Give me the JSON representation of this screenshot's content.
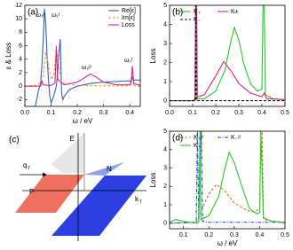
{
  "chart_data": [
    {
      "type": "line",
      "panel_label": "(a)",
      "y_label": "ε & Loss",
      "x_label": "ω / eV",
      "xlim": [
        0,
        0.44
      ],
      "ylim": [
        -3,
        12
      ],
      "xticks": [
        {
          "value": 0,
          "label": "0.0"
        },
        0.1,
        0.2,
        0.3,
        0.4
      ],
      "yticks": [
        -2,
        0,
        2,
        4,
        6,
        8,
        10,
        12
      ],
      "legend": "upper right",
      "annotations": [
        "ω₁ᵖ",
        "ω₁ᵗ",
        "ω₂ᵖ",
        "ω₂ᵗ"
      ],
      "series": [
        {
          "name": "Re[ε]",
          "color": "#2f5fd0",
          "style": "solid",
          "x": [
            0.02,
            0.04,
            0.05,
            0.06,
            0.065,
            0.07,
            0.075,
            0.08,
            0.085,
            0.09,
            0.095,
            0.1,
            0.11,
            0.12,
            0.125,
            0.13,
            0.135,
            0.14,
            0.145,
            0.15,
            0.17,
            0.2,
            0.25,
            0.3,
            0.35,
            0.4,
            0.405,
            0.41,
            0.415,
            0.44
          ],
          "values": [
            -3,
            -3,
            -1,
            0.5,
            3,
            7,
            11.5,
            9,
            4,
            1,
            -1.5,
            -2.5,
            -1.5,
            0,
            2,
            5,
            7,
            -1,
            -2,
            -1.5,
            -0.5,
            0,
            0.4,
            0.6,
            0.7,
            0.8,
            0.6,
            1.3,
            0.9,
            0.9
          ]
        },
        {
          "name": "Im[ε]",
          "color": "#f0a020",
          "style": "dashed",
          "x": [
            0,
            0.05,
            0.07,
            0.08,
            0.09,
            0.1,
            0.11,
            0.12,
            0.13,
            0.14,
            0.2,
            0.3,
            0.4,
            0.41,
            0.42,
            0.44
          ],
          "values": [
            0,
            0.2,
            1.5,
            5,
            3,
            1,
            1.5,
            5.5,
            3,
            0.5,
            0.1,
            0.05,
            0.05,
            0.3,
            0.05,
            0
          ]
        },
        {
          "name": "Loss",
          "color": "#e0208a",
          "style": "solid",
          "x": [
            0,
            0.06,
            0.065,
            0.07,
            0.1,
            0.115,
            0.12,
            0.125,
            0.15,
            0.2,
            0.23,
            0.25,
            0.27,
            0.3,
            0.35,
            0.4,
            0.405,
            0.41,
            0.415,
            0.44
          ],
          "values": [
            0,
            0,
            0.8,
            0.2,
            0.1,
            0.5,
            6,
            1,
            0.2,
            0.6,
            1.3,
            1.8,
            1.4,
            0.6,
            0.2,
            0.2,
            0.5,
            3,
            0.4,
            0.1
          ]
        }
      ]
    },
    {
      "type": "line",
      "panel_label": "(b)",
      "y_label": "Loss",
      "xlim": [
        0,
        0.5
      ],
      "ylim": [
        -0.3,
        5
      ],
      "xticks": [
        {
          "value": 0,
          "label": "0.0"
        },
        0.1,
        0.2,
        0.3,
        0.4,
        0.5
      ],
      "yticks": [
        0,
        1,
        2,
        3,
        4,
        5
      ],
      "legend": "upper center",
      "series": [
        {
          "name": "K₊",
          "color": "#22cc22",
          "style": "solid",
          "x": [
            0,
            0.1,
            0.11,
            0.113,
            0.117,
            0.12,
            0.15,
            0.2,
            0.24,
            0.26,
            0.28,
            0.3,
            0.32,
            0.35,
            0.38,
            0.4,
            0.405,
            0.41,
            0.415,
            0.45,
            0.5
          ],
          "values": [
            0,
            0,
            0.1,
            5,
            5,
            0.1,
            0.1,
            0.5,
            1.6,
            2.8,
            3.85,
            3.2,
            2,
            0.9,
            0.5,
            0.6,
            5,
            5,
            0.3,
            0.1,
            0.05
          ]
        },
        {
          "name": "K±",
          "color": "#e0208a",
          "style": "solid",
          "x": [
            0,
            0.11,
            0.113,
            0.117,
            0.12,
            0.15,
            0.2,
            0.235,
            0.27,
            0.3,
            0.35,
            0.4,
            0.41,
            0.42,
            0.5
          ],
          "values": [
            0,
            0,
            5,
            5,
            0.2,
            0.3,
            1.3,
            2.05,
            1.5,
            0.9,
            0.4,
            0.2,
            0.4,
            0.1,
            0.05
          ]
        },
        {
          "name": "K₋",
          "color": "#000000",
          "style": "dashed",
          "x": [
            0,
            0.112,
            0.114,
            0.116,
            0.5
          ],
          "values": [
            0,
            0,
            5,
            0,
            0
          ]
        }
      ]
    },
    {
      "type": "diagram",
      "panel_label": "(c)",
      "labels": [
        "E",
        "q",
        "T",
        "P",
        "N",
        "k",
        "T"
      ]
    },
    {
      "type": "line",
      "panel_label": "(d)",
      "y_label": "Loss",
      "x_label": "ω / eV",
      "xlim": [
        0.045,
        0.5
      ],
      "ylim": [
        -0.3,
        5
      ],
      "xticks": [
        0.1,
        0.2,
        0.3,
        0.4,
        0.5
      ],
      "yticks": [
        0,
        1,
        2,
        3,
        4,
        5
      ],
      "legend": "upper center",
      "series": [
        {
          "name": "K₊ᵖ",
          "color": "#d07a10",
          "style": "dashed",
          "x": [
            0.045,
            0.15,
            0.16,
            0.18,
            0.2,
            0.23,
            0.26,
            0.3,
            0.35,
            0.38,
            0.4,
            0.405,
            0.41,
            0.415,
            0.5
          ],
          "values": [
            0,
            0.05,
            0.3,
            1,
            1.6,
            2.1,
            1.8,
            1.1,
            0.7,
            0.6,
            0.8,
            5,
            5,
            0.2,
            0
          ]
        },
        {
          "name": "K₋ᵖ",
          "color": "#2040e0",
          "style": "dashdot",
          "x": [
            0.045,
            0.15,
            0.155,
            0.16,
            0.17,
            0.175,
            0.2,
            0.5
          ],
          "values": [
            0,
            0.05,
            5,
            0.2,
            5,
            0.1,
            0.05,
            0.05
          ]
        },
        {
          "name": "K₊",
          "color": "#22cc22",
          "style": "solid",
          "x": [
            0.045,
            0.07,
            0.1,
            0.15,
            0.16,
            0.165,
            0.168,
            0.2,
            0.24,
            0.26,
            0.28,
            0.3,
            0.33,
            0.36,
            0.39,
            0.4,
            0.405,
            0.415,
            0.45,
            0.5
          ],
          "values": [
            0.05,
            0.2,
            0.1,
            0,
            0.05,
            5,
            0.2,
            0.4,
            1.5,
            2.8,
            3.85,
            3.3,
            2,
            0.8,
            0.5,
            0.6,
            5,
            0.3,
            0.1,
            0.05
          ]
        }
      ]
    }
  ]
}
